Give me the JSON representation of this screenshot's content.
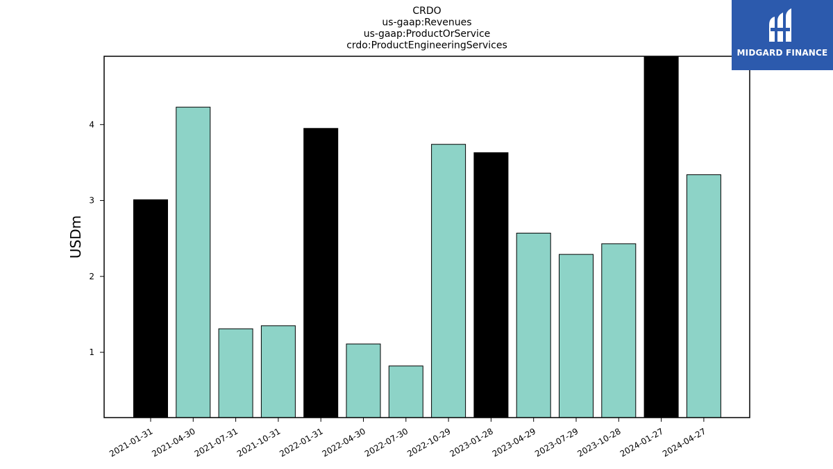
{
  "chart_data": {
    "type": "bar",
    "title_lines": [
      "CRDO",
      "us-gaap:Revenues",
      "us-gaap:ProductOrService",
      "crdo:ProductEngineeringServices"
    ],
    "xlabel": "",
    "ylabel": "USDm",
    "ylim": [
      0.14,
      4.9
    ],
    "yticks": [
      1,
      2,
      3,
      4
    ],
    "grid": false,
    "categories": [
      "2021-01-31",
      "2021-04-30",
      "2021-07-31",
      "2021-10-31",
      "2022-01-31",
      "2022-04-30",
      "2022-07-30",
      "2022-10-29",
      "2023-01-28",
      "2023-04-29",
      "2023-07-29",
      "2023-10-28",
      "2024-01-27",
      "2024-04-27"
    ],
    "values": [
      3.01,
      4.23,
      1.31,
      1.35,
      3.95,
      1.11,
      0.82,
      3.74,
      3.63,
      2.57,
      2.29,
      2.43,
      4.92,
      3.34
    ],
    "bar_colors": [
      "#000000",
      "#8dd3c7",
      "#8dd3c7",
      "#8dd3c7",
      "#000000",
      "#8dd3c7",
      "#8dd3c7",
      "#8dd3c7",
      "#000000",
      "#8dd3c7",
      "#8dd3c7",
      "#8dd3c7",
      "#000000",
      "#8dd3c7"
    ]
  },
  "logo": {
    "text": "MIDGARD FINANCE",
    "background": "#2c5aad",
    "icon": "midgard-logo-icon"
  }
}
